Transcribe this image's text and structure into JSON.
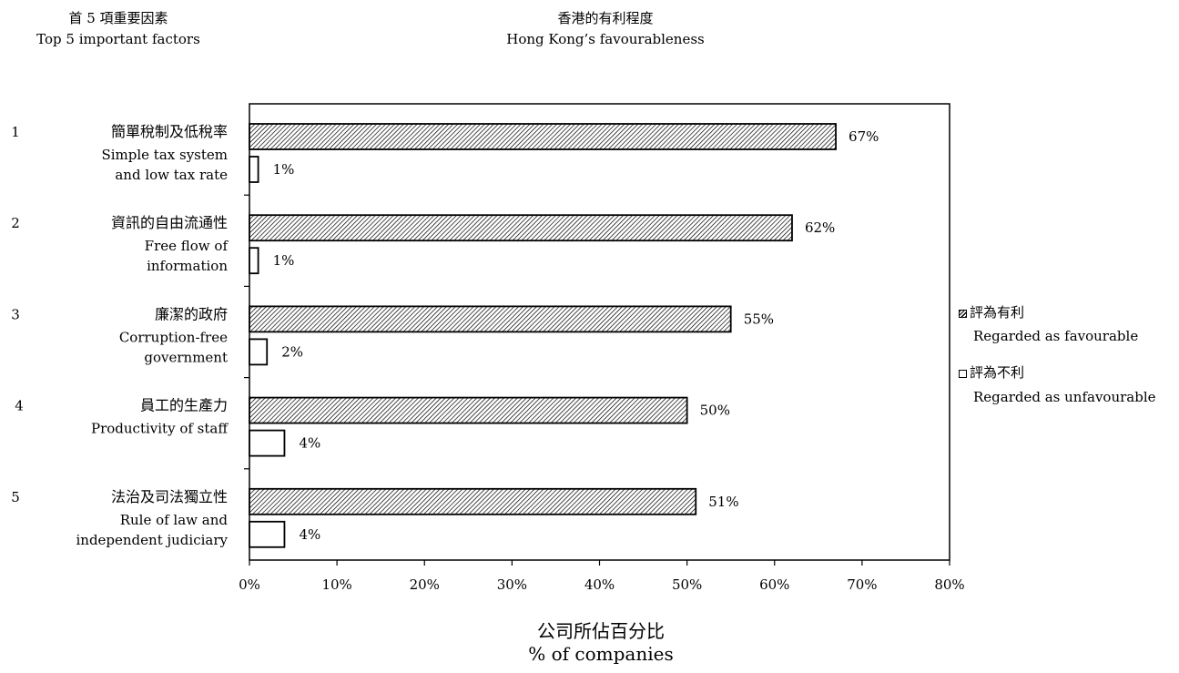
{
  "header": {
    "left_title_zh": "首 5 項重要因素",
    "left_title_en": "Top 5 important factors",
    "center_title_zh": "香港的有利程度",
    "center_title_en": "Hong Kong’s favourableness"
  },
  "legend": [
    {
      "zh": "評為有利",
      "en": "Regarded as favourable"
    },
    {
      "zh": "評為不利",
      "en": "Regarded as unfavourable"
    }
  ],
  "chart_data": {
    "type": "bar",
    "orientation": "horizontal",
    "categories": [
      {
        "rank": "1",
        "zh": "簡單稅制及低稅率",
        "en_lines": [
          "Simple tax system",
          "and low tax rate"
        ]
      },
      {
        "rank": "2",
        "zh": "資訊的自由流通性",
        "en_lines": [
          "Free flow of",
          "information"
        ]
      },
      {
        "rank": "3",
        "zh": "廉潔的政府",
        "en_lines": [
          "Corruption-free",
          "government"
        ]
      },
      {
        "rank": "4",
        "zh": "員工的生產力",
        "en_lines": [
          "Productivity of staff"
        ]
      },
      {
        "rank": "5",
        "zh": "法治及司法獨立性",
        "en_lines": [
          "Rule of law and",
          "independent judiciary"
        ]
      }
    ],
    "series": [
      {
        "name": "評為有利 Regarded as favourable",
        "values": [
          67,
          62,
          55,
          50,
          51
        ],
        "labels": [
          "67%",
          "62%",
          "55%",
          "50%",
          "51%"
        ]
      },
      {
        "name": "評為不利 Regarded as unfavourable",
        "values": [
          1,
          1,
          2,
          4,
          4
        ],
        "labels": [
          "1%",
          "1%",
          "2%",
          "4%",
          "4%"
        ]
      }
    ],
    "xlim": [
      0,
      80
    ],
    "xticks": [
      "0%",
      "10%",
      "20%",
      "30%",
      "40%",
      "50%",
      "60%",
      "70%",
      "80%"
    ],
    "xlabel_zh": "公司所佔百分比",
    "xlabel_en": "% of companies",
    "grid": false,
    "legend_position": "right"
  }
}
